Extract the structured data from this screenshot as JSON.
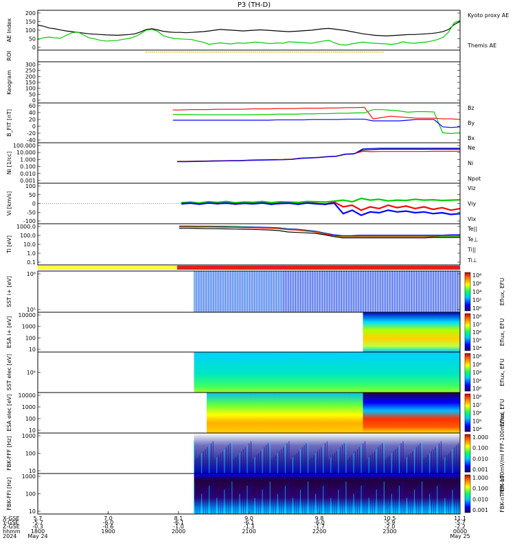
{
  "chart_data": {
    "type": "line",
    "title": "P3 (TH-D)",
    "panels": [
      {
        "id": "ae",
        "ylabel": "AE Index",
        "yticks": [
          "200",
          "150",
          "100",
          "50",
          "0"
        ],
        "ylim": [
          -10,
          210
        ],
        "legend": [
          {
            "name": "Kyoto proxy AE",
            "color": "#00cc00"
          },
          {
            "name": "Themis AE",
            "color": "#000000"
          }
        ],
        "series": [
          {
            "name": "Themis AE",
            "color": "#000000",
            "values": [
              128,
              122,
              112,
              108,
              101,
              96,
              92,
              88,
              84,
              80,
              78,
              76,
              74,
              73,
              72,
              74,
              76,
              80,
              90,
              104,
              108,
              102,
              94,
              90,
              88,
              88,
              86,
              88,
              90,
              92,
              96,
              100,
              104,
              102,
              100,
              98,
              96,
              98,
              100,
              102,
              100,
              98,
              96,
              94,
              92,
              94,
              96,
              98,
              100,
              104,
              108,
              110,
              106,
              102,
              98,
              92,
              86,
              80,
              76,
              72,
              70,
              68,
              70,
              72,
              74,
              76,
              76,
              78,
              80,
              82,
              86,
              92,
              104,
              132,
              148
            ]
          },
          {
            "name": "Kyoto proxy AE",
            "color": "#00cc00",
            "values": [
              48,
              58,
              62,
              58,
              56,
              72,
              86,
              90,
              74,
              58,
              52,
              44,
              40,
              42,
              44,
              50,
              54,
              64,
              80,
              100,
              104,
              94,
              70,
              60,
              54,
              52,
              50,
              48,
              40,
              34,
              22,
              26,
              30,
              26,
              24,
              30,
              28,
              30,
              34,
              32,
              28,
              26,
              30,
              28,
              36,
              34,
              32,
              30,
              28,
              34,
              40,
              44,
              30,
              20,
              18,
              24,
              30,
              34,
              30,
              28,
              26,
              24,
              22,
              26,
              36,
              30,
              28,
              32,
              34,
              40,
              48,
              60,
              90,
              142,
              154
            ]
          }
        ]
      },
      {
        "id": "roi",
        "ylabel": "ROI",
        "yticks": [],
        "roi_start": 0.255,
        "roi_end": 0.82
      },
      {
        "id": "keogram",
        "ylabel": "Keogram",
        "yticks": [
          "300",
          "250",
          "200",
          "150",
          "100",
          "50",
          "0"
        ]
      },
      {
        "id": "bfield",
        "ylabel": "B_FIT [nT]",
        "yticks": [
          "60",
          "40",
          "20",
          "0",
          "-20",
          "-40"
        ],
        "ylim": [
          -60,
          60
        ],
        "legend": [
          {
            "name": "Bz",
            "color": "#ff0000"
          },
          {
            "name": "By",
            "color": "#00cc00"
          },
          {
            "name": "Bx",
            "color": "#0000ff"
          }
        ],
        "x_start": 0.32,
        "series": [
          {
            "name": "Bz",
            "color": "#ff0000",
            "values": [
              39,
              39,
              40,
              40,
              40,
              41,
              41,
              41,
              41,
              42,
              42,
              42,
              43,
              43,
              43,
              44,
              44,
              44,
              45,
              45,
              46,
              46,
              47,
              12,
              16,
              20,
              18,
              16,
              14,
              14,
              14,
              12,
              12,
              10
            ]
          },
          {
            "name": "By",
            "color": "#00cc00",
            "values": [
              25,
              25,
              25,
              24,
              24,
              24,
              24,
              24,
              24,
              24,
              25,
              25,
              26,
              26,
              26,
              27,
              27,
              28,
              28,
              29,
              29,
              30,
              30,
              40,
              40,
              38,
              36,
              32,
              34,
              34,
              33,
              -30,
              -32,
              -30
            ]
          },
          {
            "name": "Bx",
            "color": "#0000ff",
            "values": [
              8,
              8,
              8,
              8,
              8,
              8,
              8,
              8,
              8,
              8,
              8,
              8,
              9,
              9,
              9,
              9,
              10,
              10,
              10,
              10,
              11,
              11,
              11,
              6,
              6,
              6,
              6,
              8,
              10,
              10,
              10,
              -12,
              -14,
              -12
            ]
          }
        ]
      },
      {
        "id": "density",
        "ylabel": "Ni [1/cc]",
        "yticks": [
          "100.000",
          "10.000",
          "1.000",
          "0.100",
          "0.010",
          "0.001"
        ],
        "ylim_log": [
          -3,
          2
        ],
        "legend": [
          {
            "name": "Ne",
            "color": "#ff0000"
          },
          {
            "name": "Ni",
            "color": "#000000"
          },
          {
            "name": "Npot",
            "color": "#0000ff"
          }
        ],
        "x_start": 0.33,
        "series": [
          {
            "name": "Ni",
            "color": "#000000",
            "log10_values": [
              -0.3,
              -0.3,
              -0.28,
              -0.26,
              -0.24,
              -0.22,
              -0.2,
              -0.2,
              -0.15,
              -0.12,
              -0.1,
              -0.08,
              -0.06,
              -0.02,
              0.1,
              0.15,
              0.2,
              0.3,
              0.35,
              0.6,
              0.65,
              1.1,
              1.15,
              1.2,
              1.2,
              1.2,
              1.2,
              1.2,
              1.2,
              1.2,
              1.2,
              1.2,
              1.2
            ]
          },
          {
            "name": "Ne",
            "color": "#ff0000",
            "log10_values": [
              -0.32,
              -0.32,
              -0.3,
              -0.28,
              -0.26,
              -0.24,
              -0.22,
              -0.22,
              -0.17,
              -0.14,
              -0.12,
              -0.1,
              -0.08,
              -0.04,
              0.08,
              0.13,
              0.18,
              0.28,
              0.33,
              0.58,
              0.63,
              0.95,
              0.9,
              0.92,
              0.92,
              0.92,
              0.92,
              0.92,
              0.92,
              0.95,
              0.95,
              0.95,
              0.95
            ]
          },
          {
            "name": "Npot",
            "color": "#0000ff",
            "log10_values": [
              -0.34,
              -0.34,
              -0.32,
              -0.3,
              -0.28,
              -0.26,
              -0.24,
              -0.24,
              -0.19,
              -0.16,
              -0.14,
              -0.12,
              -0.1,
              -0.06,
              0.06,
              0.11,
              0.16,
              0.26,
              0.31,
              0.56,
              0.61,
              1.25,
              1.3,
              1.32,
              1.32,
              1.32,
              1.32,
              1.32,
              1.32,
              1.32,
              1.32,
              1.32,
              1.32
            ]
          }
        ]
      },
      {
        "id": "velocity",
        "ylabel": "Vi [km/s]",
        "yticks": [
          "100",
          "50",
          "0",
          "-50",
          "-100"
        ],
        "ylim": [
          -120,
          120
        ],
        "legend": [
          {
            "name": "Viz",
            "color": "#ff0000"
          },
          {
            "name": "Viy",
            "color": "#00cc00"
          },
          {
            "name": "Vix",
            "color": "#0000ff"
          }
        ],
        "x_start": 0.34,
        "series": [
          {
            "name": "Viz",
            "color": "#ff0000",
            "values": [
              0,
              4,
              -3,
              6,
              -2,
              5,
              -4,
              3,
              0,
              6,
              -5,
              2,
              4,
              -3,
              5,
              0,
              -6,
              8,
              -20,
              -10,
              -40,
              -20,
              -30,
              -10,
              -25,
              -15,
              -30,
              -20,
              -35,
              -25,
              -40,
              -30
            ]
          },
          {
            "name": "Viy",
            "color": "#00cc00",
            "values": [
              5,
              8,
              3,
              10,
              6,
              12,
              4,
              9,
              7,
              12,
              5,
              10,
              8,
              6,
              12,
              10,
              8,
              14,
              20,
              10,
              30,
              20,
              25,
              15,
              20,
              18,
              25,
              20,
              22,
              18,
              20,
              22
            ]
          },
          {
            "name": "Vix",
            "color": "#0000ff",
            "values": [
              -2,
              2,
              -4,
              3,
              -1,
              2,
              -3,
              1,
              -2,
              3,
              -4,
              0,
              2,
              -5,
              3,
              -2,
              -4,
              2,
              -60,
              -40,
              -70,
              -50,
              -55,
              -40,
              -50,
              -45,
              -55,
              -50,
              -60,
              -55,
              -65,
              -60
            ]
          }
        ]
      },
      {
        "id": "temperature",
        "ylabel": "Ti [eV]",
        "yticks": [
          "1000.0",
          "100.0",
          "10.0",
          "1.0",
          "0.1"
        ],
        "ylim_log": [
          -1,
          3.5
        ],
        "legend": [
          {
            "name": "Te||",
            "color": "#000000"
          },
          {
            "name": "Te⊥",
            "color": "#ff0000"
          },
          {
            "name": "Ti||",
            "color": "#00cc00"
          },
          {
            "name": "Ti⊥",
            "color": "#0000ff"
          }
        ],
        "x_start": 0.335,
        "series": [
          {
            "name": "Ti⊥",
            "color": "#0000ff",
            "log10_values": [
              3.25,
              3.25,
              3.24,
              3.24,
              3.23,
              3.22,
              3.2,
              3.18,
              3.15,
              3.12,
              3.1,
              3.05,
              2.95,
              2.9,
              2.8,
              2.7,
              2.5,
              2.3,
              2.2,
              2.2,
              2.25,
              2.25,
              2.25,
              2.25,
              2.25,
              2.25,
              2.25,
              2.25,
              2.25,
              2.25,
              2.3,
              2.3
            ]
          },
          {
            "name": "Ti||",
            "color": "#00cc00",
            "log10_values": [
              3.2,
              3.2,
              3.2,
              3.2,
              3.19,
              3.18,
              3.16,
              3.14,
              3.1,
              3.07,
              3.05,
              3.0,
              2.9,
              2.85,
              2.75,
              2.65,
              2.45,
              2.2,
              2.05,
              2.05,
              2.05,
              2.05,
              2.05,
              2.05,
              2.05,
              2.05,
              2.05,
              2.05,
              2.08,
              2.08,
              2.1,
              2.1
            ]
          },
          {
            "name": "Te⊥",
            "color": "#ff0000",
            "log10_values": [
              3.15,
              3.15,
              3.14,
              3.14,
              3.13,
              3.12,
              3.1,
              3.08,
              3.05,
              3.02,
              3.0,
              2.95,
              2.85,
              2.8,
              2.7,
              2.6,
              2.4,
              2.2,
              2.15,
              2.15,
              2.15,
              2.15,
              2.15,
              2.15,
              2.15,
              2.15,
              2.15,
              2.15,
              2.15,
              2.2,
              2.2,
              2.2
            ]
          },
          {
            "name": "Te||",
            "color": "#000000",
            "log10_values": [
              3.0,
              3.0,
              2.98,
              2.96,
              2.95,
              2.94,
              2.92,
              2.9,
              2.88,
              2.85,
              2.82,
              2.75,
              2.6,
              2.55,
              2.5,
              2.45,
              2.3,
              2.1,
              1.95,
              1.95,
              1.95,
              1.95,
              1.95,
              1.95,
              1.95,
              1.95,
              1.95,
              1.95,
              2.0,
              2.0,
              2.0,
              2.0
            ]
          }
        ]
      },
      {
        "id": "sst_ion",
        "ylabel": "SST i+ [eV]",
        "yticks": [
          "10⁶",
          "10⁵"
        ],
        "colorbar": {
          "label": "Eflux, EFU",
          "ticks": [
            "10⁸",
            "10⁶",
            "10⁴",
            "10²",
            "10⁰"
          ]
        },
        "x_start": 0.37
      },
      {
        "id": "esa_ion",
        "ylabel": "ESA i+ [eV]",
        "yticks": [
          "10000",
          "1000",
          "100",
          "10"
        ],
        "colorbar": {
          "label": "Eflux, EFU",
          "ticks": [
            "10⁸",
            "10⁷",
            "10⁶",
            "10⁵",
            "10⁴"
          ]
        },
        "x_start": 0.38
      },
      {
        "id": "sst_elec",
        "ylabel": "SST elec [eV]",
        "yticks": [
          "10⁵"
        ],
        "colorbar": {
          "label": "Eflux, EFU",
          "ticks": [
            "10⁸",
            "10⁶",
            "10⁴",
            "10²",
            "10⁰"
          ]
        },
        "x_start": 0.37
      },
      {
        "id": "esa_elec",
        "ylabel": "ESA elec [eV]",
        "yticks": [
          "10000",
          "1000",
          "100",
          "10"
        ],
        "colorbar": {
          "label": "Eflux, EFU",
          "ticks": [
            "10⁸",
            "10⁷",
            "10⁶",
            "10⁵",
            "10⁴"
          ]
        },
        "x_start": 0.4
      },
      {
        "id": "fbk_fff",
        "ylabel": "FBK-FFF [Hz]",
        "yticks": [
          "1000",
          "100",
          "10"
        ],
        "colorbar": {
          "label": "FBK-100mV/ml  FFF-100mV/ml",
          "ticks": [
            "1.000",
            "0.100",
            "0.010",
            "0.001"
          ]
        },
        "x_start": 0.37
      },
      {
        "id": "fbk_ffi",
        "ylabel": "FBK-FFI [Hz]",
        "yticks": [
          "1000",
          "100",
          "10"
        ],
        "colorbar": {
          "label": "FBK-nT  FFI-nT",
          "ticks": [
            "1.000",
            "0.100",
            "0.010",
            "0.001"
          ]
        },
        "x_start": 0.37
      }
    ],
    "x_axis": {
      "row_labels": [
        "X-GSE",
        "Y-GSE",
        "Z-GSE",
        "hhmm",
        "2024"
      ],
      "ticks": [
        {
          "x_gse": "5.7",
          "y_gse": "-5.7",
          "z_gse": "-0.3",
          "hhmm": "1800",
          "date": "May 24"
        },
        {
          "x_gse": "7.0",
          "y_gse": "-6.0",
          "z_gse": "-0.6",
          "hhmm": "1900",
          "date": ""
        },
        {
          "x_gse": "8.1",
          "y_gse": "-6.1",
          "z_gse": "-1.0",
          "hhmm": "2000",
          "date": ""
        },
        {
          "x_gse": "9.0",
          "y_gse": "-6.1",
          "z_gse": "-1.3",
          "hhmm": "2100",
          "date": ""
        },
        {
          "x_gse": "9.8",
          "y_gse": "-6.0",
          "z_gse": "-1.7",
          "hhmm": "2200",
          "date": ""
        },
        {
          "x_gse": "10.5",
          "y_gse": "-5.9",
          "z_gse": "-2.0",
          "hhmm": "2300",
          "date": ""
        },
        {
          "x_gse": "11.1",
          "y_gse": "-5.7",
          "z_gse": "-2.2",
          "hhmm": "0000",
          "date": "May 25"
        }
      ]
    },
    "mode_bar": {
      "yellow_end": 0.33,
      "red_start": 0.33
    }
  }
}
